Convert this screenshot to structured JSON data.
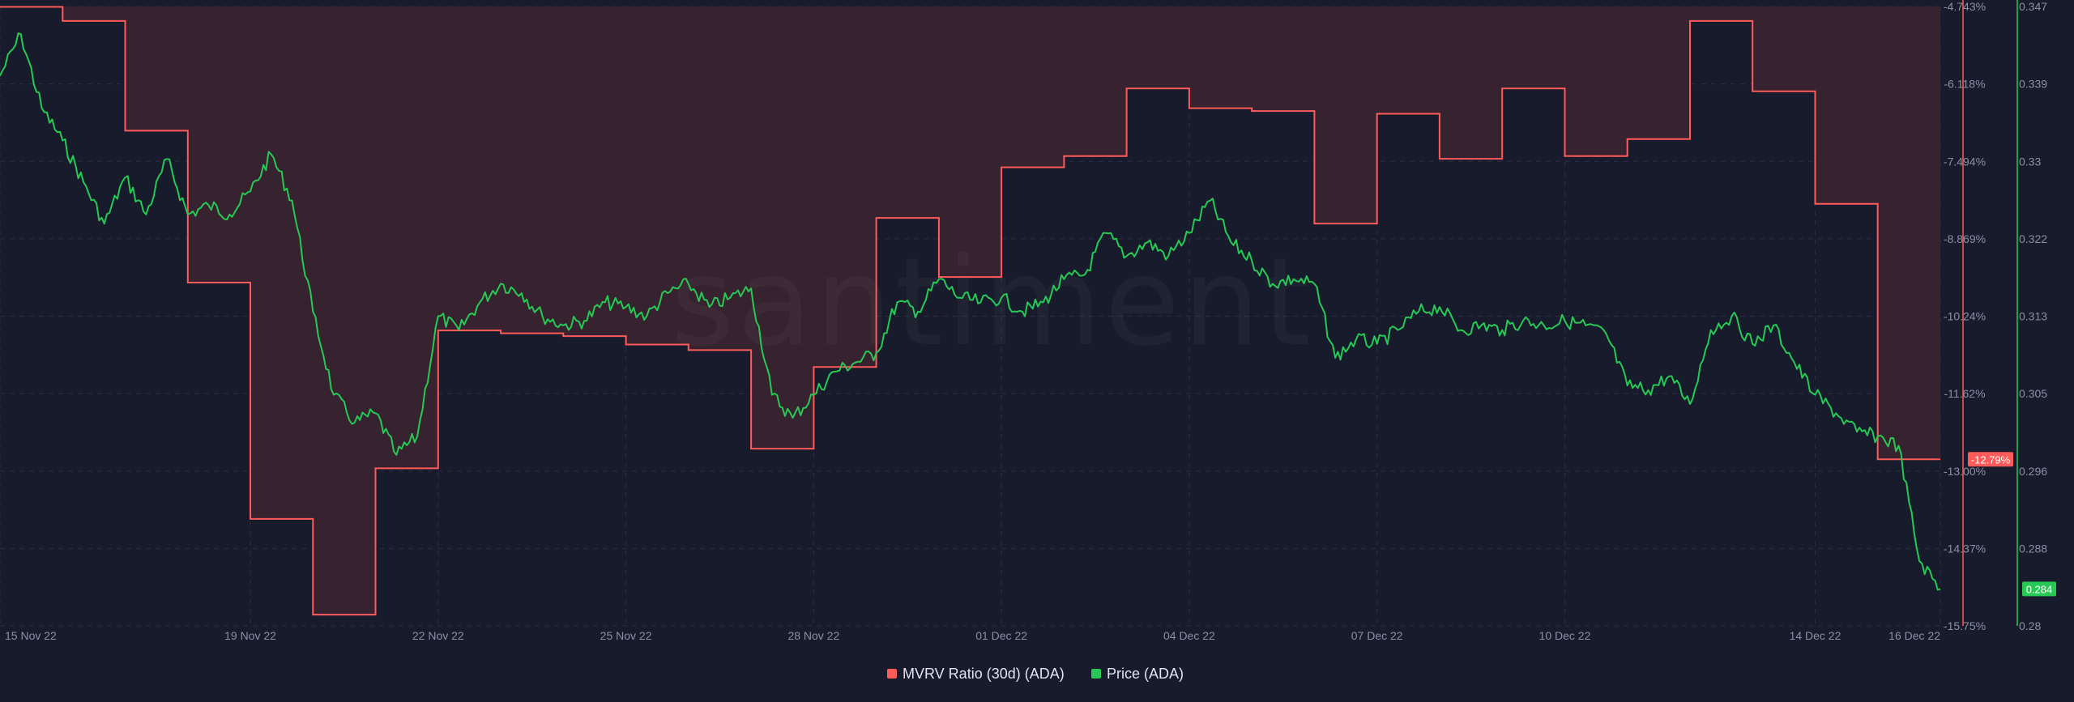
{
  "colors": {
    "background": "#181b2b",
    "mvrv": "#ff5b5b",
    "mvrv_fill_above": "#3b2330",
    "price": "#26c953",
    "grid": "#2a2e44",
    "axis_text": "#8b90a6"
  },
  "watermark": "santiment",
  "chart_data": {
    "type": "line",
    "x_axis": {
      "type": "date",
      "range": [
        "2022-11-15",
        "2022-12-16"
      ],
      "ticks": [
        "15 Nov 22",
        "19 Nov 22",
        "22 Nov 22",
        "25 Nov 22",
        "28 Nov 22",
        "01 Dec 22",
        "04 Dec 22",
        "07 Dec 22",
        "10 Dec 22",
        "14 Dec 22",
        "16 Dec 22"
      ]
    },
    "left_axis": {
      "series": "MVRV Ratio (30d) (ADA)",
      "unit": "%",
      "range": [
        -15.75,
        -4.743
      ],
      "ticks": [
        "-4.743%",
        "-6.118%",
        "-7.494%",
        "-8.869%",
        "-10.24%",
        "-11.62%",
        "-13.00%",
        "-14.37%",
        "-15.75%"
      ],
      "last_value_label": "-12.79%"
    },
    "right_axis": {
      "series": "Price (ADA)",
      "range": [
        0.28,
        0.347
      ],
      "ticks": [
        "0.347",
        "0.339",
        "0.33",
        "0.322",
        "0.313",
        "0.305",
        "0.296",
        "0.288",
        "0.28"
      ],
      "last_value_label": "0.284"
    },
    "grid": true,
    "legend_position": "bottom-center",
    "series": [
      {
        "name": "MVRV Ratio (30d) (ADA)",
        "axis": "left",
        "step": true,
        "points": [
          [
            "2022-11-15",
            -4.75
          ],
          [
            "2022-11-16",
            -5.0
          ],
          [
            "2022-11-17",
            -6.95
          ],
          [
            "2022-11-18",
            -9.65
          ],
          [
            "2022-11-19",
            -13.85
          ],
          [
            "2022-11-20",
            -15.55
          ],
          [
            "2022-11-21",
            -12.95
          ],
          [
            "2022-11-22",
            -10.5
          ],
          [
            "2022-11-23",
            -10.55
          ],
          [
            "2022-11-24",
            -10.6
          ],
          [
            "2022-11-25",
            -10.75
          ],
          [
            "2022-11-26",
            -10.85
          ],
          [
            "2022-11-27",
            -12.6
          ],
          [
            "2022-11-28",
            -11.15
          ],
          [
            "2022-11-29",
            -8.5
          ],
          [
            "2022-11-30",
            -9.55
          ],
          [
            "2022-12-01",
            -7.6
          ],
          [
            "2022-12-02",
            -7.4
          ],
          [
            "2022-12-03",
            -6.2
          ],
          [
            "2022-12-04",
            -6.55
          ],
          [
            "2022-12-05",
            -6.6
          ],
          [
            "2022-12-06",
            -8.6
          ],
          [
            "2022-12-07",
            -6.65
          ],
          [
            "2022-12-08",
            -7.45
          ],
          [
            "2022-12-09",
            -6.2
          ],
          [
            "2022-12-10",
            -7.4
          ],
          [
            "2022-12-11",
            -7.1
          ],
          [
            "2022-12-12",
            -5.0
          ],
          [
            "2022-12-13",
            -6.25
          ],
          [
            "2022-12-14",
            -8.25
          ],
          [
            "2022-12-15",
            -12.79
          ],
          [
            "2022-12-16",
            -12.79
          ]
        ]
      },
      {
        "name": "Price (ADA)",
        "axis": "right",
        "step": false,
        "points": [
          [
            "2022-11-15 00:00",
            0.3395
          ],
          [
            "2022-11-15 08:00",
            0.344
          ],
          [
            "2022-11-15 16:00",
            0.336
          ],
          [
            "2022-11-16 00:00",
            0.3325
          ],
          [
            "2022-11-16 08:00",
            0.328
          ],
          [
            "2022-11-16 16:00",
            0.3235
          ],
          [
            "2022-11-17 00:00",
            0.3285
          ],
          [
            "2022-11-17 08:00",
            0.3245
          ],
          [
            "2022-11-17 16:00",
            0.3305
          ],
          [
            "2022-11-18 00:00",
            0.3245
          ],
          [
            "2022-11-18 08:00",
            0.3255
          ],
          [
            "2022-11-18 16:00",
            0.3245
          ],
          [
            "2022-11-19 00:00",
            0.327
          ],
          [
            "2022-11-19 08:00",
            0.331
          ],
          [
            "2022-11-19 16:00",
            0.326
          ],
          [
            "2022-11-20 00:00",
            0.314
          ],
          [
            "2022-11-20 08:00",
            0.305
          ],
          [
            "2022-11-20 16:00",
            0.302
          ],
          [
            "2022-11-21 00:00",
            0.303
          ],
          [
            "2022-11-21 08:00",
            0.2985
          ],
          [
            "2022-11-21 16:00",
            0.3005
          ],
          [
            "2022-11-22 00:00",
            0.3135
          ],
          [
            "2022-11-22 08:00",
            0.312
          ],
          [
            "2022-11-22 16:00",
            0.315
          ],
          [
            "2022-11-23 00:00",
            0.317
          ],
          [
            "2022-11-23 08:00",
            0.316
          ],
          [
            "2022-11-23 16:00",
            0.3135
          ],
          [
            "2022-11-24 00:00",
            0.3125
          ],
          [
            "2022-11-24 08:00",
            0.313
          ],
          [
            "2022-11-24 16:00",
            0.315
          ],
          [
            "2022-11-25 00:00",
            0.3145
          ],
          [
            "2022-11-25 08:00",
            0.3135
          ],
          [
            "2022-11-25 16:00",
            0.316
          ],
          [
            "2022-11-26 00:00",
            0.317
          ],
          [
            "2022-11-26 08:00",
            0.3145
          ],
          [
            "2022-11-26 16:00",
            0.3155
          ],
          [
            "2022-11-27 00:00",
            0.3165
          ],
          [
            "2022-11-27 08:00",
            0.305
          ],
          [
            "2022-11-27 16:00",
            0.3025
          ],
          [
            "2022-11-28 00:00",
            0.305
          ],
          [
            "2022-11-28 08:00",
            0.3075
          ],
          [
            "2022-11-28 16:00",
            0.3085
          ],
          [
            "2022-11-29 00:00",
            0.3095
          ],
          [
            "2022-11-29 08:00",
            0.315
          ],
          [
            "2022-11-29 16:00",
            0.314
          ],
          [
            "2022-11-30 00:00",
            0.3175
          ],
          [
            "2022-11-30 08:00",
            0.3155
          ],
          [
            "2022-11-30 16:00",
            0.315
          ],
          [
            "2022-12-01 00:00",
            0.3155
          ],
          [
            "2022-12-01 08:00",
            0.314
          ],
          [
            "2022-12-01 16:00",
            0.315
          ],
          [
            "2022-12-02 00:00",
            0.3175
          ],
          [
            "2022-12-02 08:00",
            0.318
          ],
          [
            "2022-12-02 16:00",
            0.3225
          ],
          [
            "2022-12-03 00:00",
            0.32
          ],
          [
            "2022-12-03 08:00",
            0.3215
          ],
          [
            "2022-12-03 16:00",
            0.32
          ],
          [
            "2022-12-04 00:00",
            0.3225
          ],
          [
            "2022-12-04 08:00",
            0.326
          ],
          [
            "2022-12-04 16:00",
            0.3215
          ],
          [
            "2022-12-05 00:00",
            0.3195
          ],
          [
            "2022-12-05 08:00",
            0.317
          ],
          [
            "2022-12-05 16:00",
            0.3175
          ],
          [
            "2022-12-06 00:00",
            0.317
          ],
          [
            "2022-12-06 08:00",
            0.309
          ],
          [
            "2022-12-06 16:00",
            0.311
          ],
          [
            "2022-12-07 00:00",
            0.3105
          ],
          [
            "2022-12-07 08:00",
            0.312
          ],
          [
            "2022-12-07 16:00",
            0.314
          ],
          [
            "2022-12-08 00:00",
            0.3145
          ],
          [
            "2022-12-08 08:00",
            0.312
          ],
          [
            "2022-12-08 16:00",
            0.3125
          ],
          [
            "2022-12-09 00:00",
            0.312
          ],
          [
            "2022-12-09 08:00",
            0.313
          ],
          [
            "2022-12-09 16:00",
            0.3125
          ],
          [
            "2022-12-10 00:00",
            0.313
          ],
          [
            "2022-12-10 08:00",
            0.3125
          ],
          [
            "2022-12-10 16:00",
            0.3115
          ],
          [
            "2022-12-11 00:00",
            0.306
          ],
          [
            "2022-12-11 08:00",
            0.3055
          ],
          [
            "2022-12-11 16:00",
            0.307
          ],
          [
            "2022-12-12 00:00",
            0.304
          ],
          [
            "2022-12-12 08:00",
            0.312
          ],
          [
            "2022-12-12 16:00",
            0.3135
          ],
          [
            "2022-12-13 00:00",
            0.3105
          ],
          [
            "2022-12-13 08:00",
            0.3125
          ],
          [
            "2022-12-13 16:00",
            0.3085
          ],
          [
            "2022-12-14 00:00",
            0.305
          ],
          [
            "2022-12-14 08:00",
            0.303
          ],
          [
            "2022-12-14 16:00",
            0.301
          ],
          [
            "2022-12-15 00:00",
            0.3005
          ],
          [
            "2022-12-15 08:00",
            0.2995
          ],
          [
            "2022-12-15 16:00",
            0.287
          ],
          [
            "2022-12-16 00:00",
            0.284
          ]
        ]
      }
    ]
  },
  "legend": {
    "items": [
      {
        "label": "MVRV Ratio (30d) (ADA)",
        "color": "#ff5b5b"
      },
      {
        "label": "Price (ADA)",
        "color": "#26c953"
      }
    ]
  }
}
